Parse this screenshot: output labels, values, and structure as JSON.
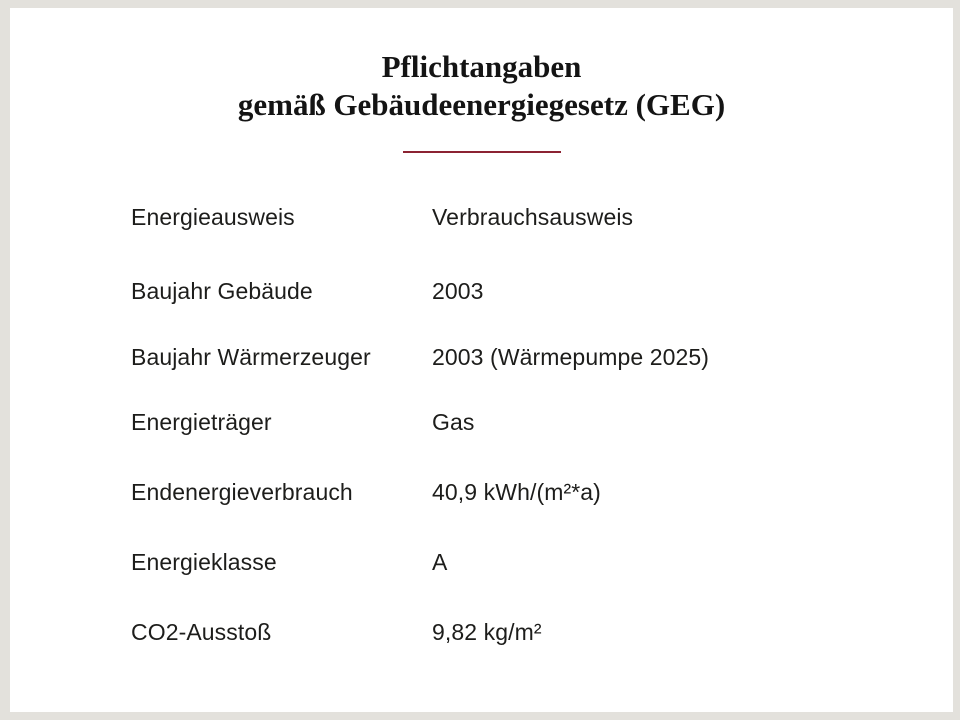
{
  "page": {
    "background_color": "#e3e1dc",
    "card_color": "#ffffff",
    "text_color": "#1d1d1b",
    "divider_color": "#8c2332"
  },
  "header": {
    "title_line1": "Pflichtangaben",
    "title_line2": "gemäß Gebäudeenergiegesetz (GEG)"
  },
  "rows": [
    {
      "label": "Energieausweis",
      "value": "Verbrauchsausweis"
    },
    {
      "label": "Baujahr Gebäude",
      "value": "2003"
    },
    {
      "label": "Baujahr Wärmerzeuger",
      "value": "2003 (Wärmepumpe 2025)"
    },
    {
      "label": "Energieträger",
      "value": "Gas"
    },
    {
      "label": "Endenergieverbrauch",
      "value": "40,9 kWh/(m²*a)"
    },
    {
      "label": "Energieklasse",
      "value": "A"
    },
    {
      "label": "CO2-Ausstoß",
      "value": "9,82 kg/m²"
    }
  ]
}
